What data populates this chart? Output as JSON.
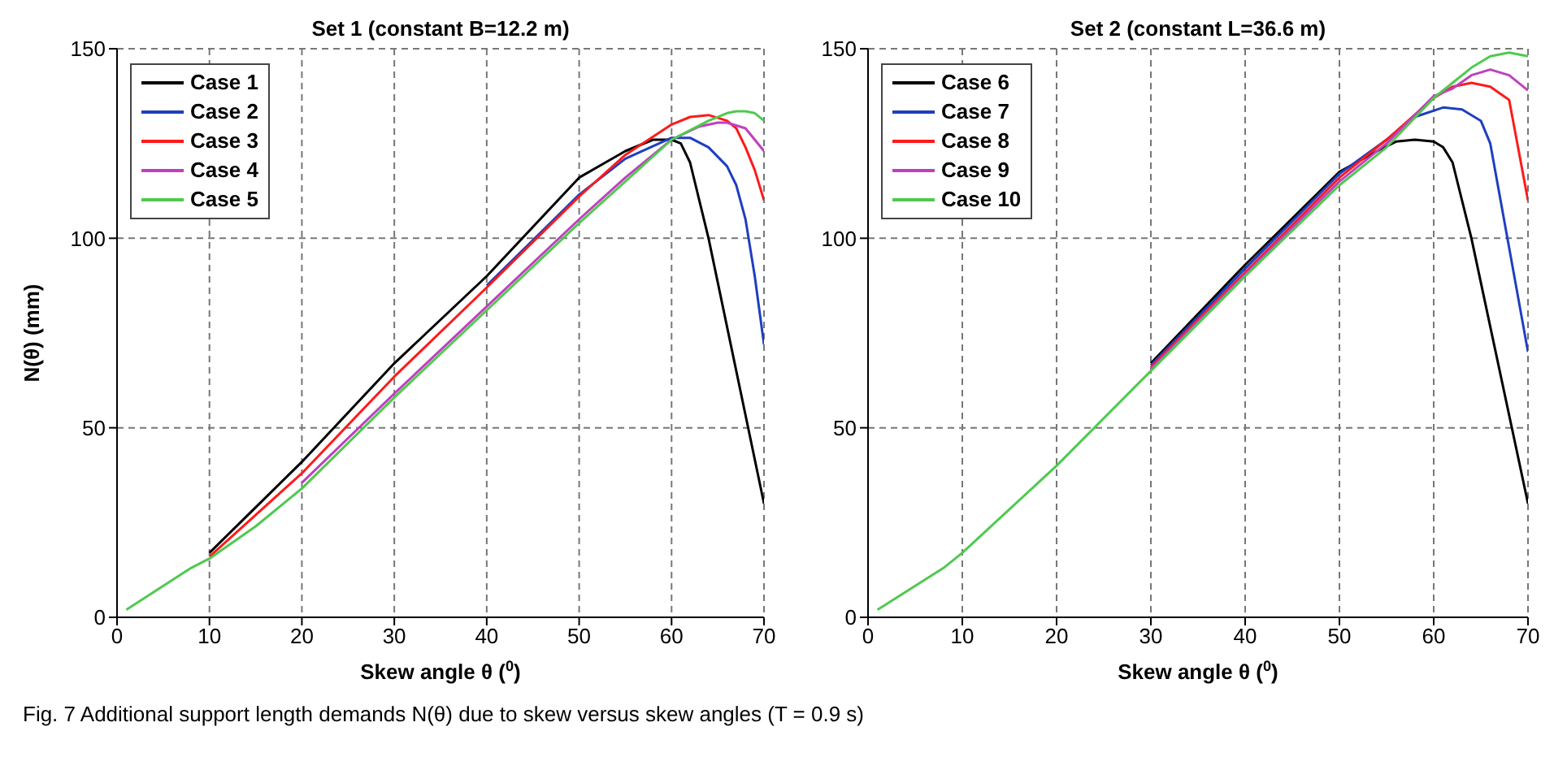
{
  "chart_data": [
    {
      "type": "line",
      "title": "Set 1 (constant B=12.2 m)",
      "xlabel": "Skew angle θ ($^{0}$)",
      "ylabel": "N(θ) (mm)",
      "xlim": [
        0,
        70
      ],
      "xticks": [
        0,
        10,
        20,
        30,
        40,
        50,
        60,
        70
      ],
      "ylim": [
        0,
        150
      ],
      "yticks": [
        0,
        50,
        100,
        150
      ],
      "grid": true,
      "legend": "top left",
      "line_style": "solid",
      "marker": "none",
      "annotations": [
        "Fig. 7 Additional support length demands N(θ) due to skew versus skew angles (T = 0.9 s)"
      ],
      "series": [
        {
          "name": "Case 1",
          "color": "#000000",
          "x": [
            10,
            20,
            30,
            40,
            50,
            55,
            58,
            60,
            61,
            62,
            64,
            70
          ],
          "values": [
            17,
            41,
            67,
            90,
            116,
            123,
            126,
            126,
            125,
            120,
            100,
            30
          ]
        },
        {
          "name": "Case 2",
          "color": "#1f3fbf",
          "x": [
            40,
            50,
            55,
            60,
            62,
            64,
            66,
            67,
            68,
            69,
            70
          ],
          "values": [
            87.5,
            111.5,
            121,
            126.5,
            126.5,
            124,
            119,
            114,
            105,
            90,
            72
          ]
        },
        {
          "name": "Case 3",
          "color": "#ff1a1a",
          "x": [
            10,
            20,
            30,
            40,
            50,
            55,
            60,
            62,
            64,
            66,
            67,
            68,
            69,
            70
          ],
          "values": [
            16,
            38,
            63.5,
            87,
            111,
            122,
            130,
            132,
            132.5,
            131,
            129,
            124,
            118,
            110
          ]
        },
        {
          "name": "Case 4",
          "color": "#bf40bf",
          "x": [
            20,
            30,
            40,
            50,
            55,
            60,
            63,
            65,
            66,
            68,
            70
          ],
          "values": [
            35.5,
            59,
            82,
            105,
            116,
            126,
            129.5,
            130.5,
            130.5,
            129,
            123
          ]
        },
        {
          "name": "Case 5",
          "color": "#4fc94f",
          "x": [
            1,
            8,
            10,
            15,
            20,
            30,
            40,
            50,
            55,
            60,
            64,
            66,
            67,
            68,
            69,
            70
          ],
          "values": [
            2,
            13,
            15.5,
            24,
            34,
            58,
            81,
            104,
            115,
            126,
            131,
            133,
            133.5,
            133.5,
            133,
            131
          ]
        }
      ]
    },
    {
      "type": "line",
      "title": "Set 2 (constant L=36.6 m)",
      "xlabel": "Skew angle θ ($^{0}$)",
      "xlim": [
        0,
        70
      ],
      "xticks": [
        0,
        10,
        20,
        30,
        40,
        50,
        60,
        70
      ],
      "ylim": [
        0,
        150
      ],
      "yticks": [
        0,
        50,
        100,
        150
      ],
      "grid": true,
      "legend": "top left",
      "line_style": "solid",
      "marker": "none",
      "series": [
        {
          "name": "Case 6",
          "color": "#000000",
          "x": [
            30,
            40,
            50,
            54,
            56,
            58,
            60,
            61,
            62,
            64,
            70
          ],
          "values": [
            67,
            93,
            117.5,
            123,
            125.5,
            126,
            125.5,
            124,
            120,
            100,
            30
          ]
        },
        {
          "name": "Case 7",
          "color": "#1f3fbf",
          "x": [
            30,
            40,
            50,
            55,
            58,
            61,
            63,
            65,
            66,
            70
          ],
          "values": [
            66.5,
            92,
            117,
            126,
            132,
            134.5,
            134,
            131,
            125,
            70
          ]
        },
        {
          "name": "Case 8",
          "color": "#ff1a1a",
          "x": [
            30,
            40,
            50,
            55,
            60,
            62,
            64,
            66,
            68,
            70
          ],
          "values": [
            66,
            91,
            116,
            126,
            137,
            140,
            141,
            140,
            136.5,
            110
          ]
        },
        {
          "name": "Case 9",
          "color": "#bf40bf",
          "x": [
            30,
            40,
            50,
            55,
            60,
            62,
            64,
            66,
            68,
            70
          ],
          "values": [
            65.5,
            90.5,
            115,
            125,
            137.5,
            139.5,
            143,
            144.5,
            143,
            139
          ]
        },
        {
          "name": "Case 10",
          "color": "#4fc94f",
          "x": [
            1,
            8,
            10,
            20,
            30,
            40,
            50,
            55,
            60,
            62,
            64,
            66,
            68,
            70
          ],
          "values": [
            2,
            13,
            17,
            40,
            65,
            90,
            114,
            124,
            137,
            141,
            145,
            148,
            149,
            148
          ]
        }
      ]
    }
  ]
}
